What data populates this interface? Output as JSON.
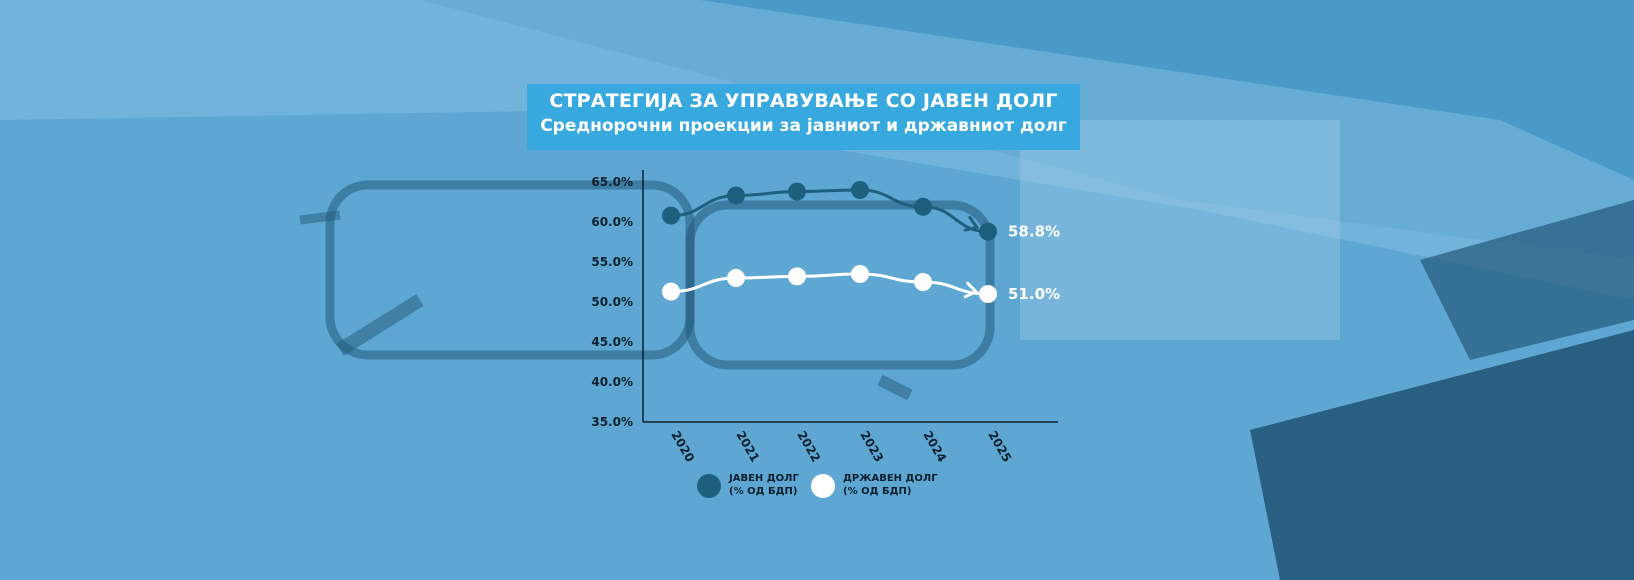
{
  "header": {
    "title": "СТРАТЕГИЈА ЗА УПРАВУВАЊЕ СО ЈАВЕН ДОЛГ",
    "subtitle": "Среднорочни проекции за јавниот и државниот долг"
  },
  "colors": {
    "background": "#4a9ac8",
    "title_box": "#38a9df",
    "public_debt": "#1f5f7e",
    "state_debt": "#ffffff",
    "axis": "#0c1f2c"
  },
  "chart_data": {
    "type": "line",
    "x": [
      "2020",
      "2021",
      "2022",
      "2023",
      "2024",
      "2025"
    ],
    "yticks": [
      "35.0%",
      "40.0%",
      "45.0%",
      "50.0%",
      "55.0%",
      "60.0%",
      "65.0%"
    ],
    "ylim": [
      35,
      65
    ],
    "series": [
      {
        "name": "ЈАВЕН ДОЛГ (% ОД БДП)",
        "name_lines": [
          "ЈАВЕН ДОЛГ",
          "(% ОД БДП)"
        ],
        "values": [
          60.8,
          63.3,
          63.8,
          64.0,
          61.9,
          58.8
        ],
        "end_label": "58.8%",
        "color": "#1f5f7e"
      },
      {
        "name": "ДРЖАВЕН ДОЛГ (% ОД БДП)",
        "name_lines": [
          "ДРЖАВЕН ДОЛГ",
          "(% ОД БДП)"
        ],
        "values": [
          51.3,
          53.0,
          53.2,
          53.5,
          52.5,
          51.0
        ],
        "end_label": "51.0%",
        "color": "#ffffff"
      }
    ]
  }
}
